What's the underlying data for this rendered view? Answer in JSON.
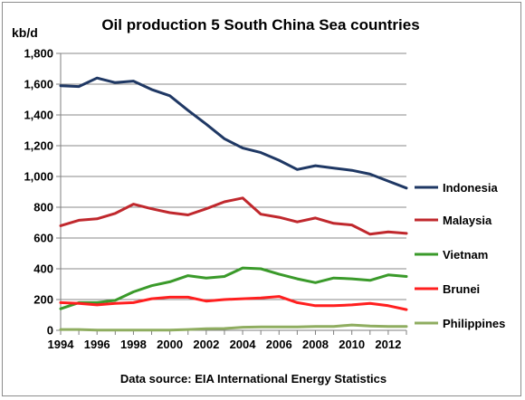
{
  "chart_data": {
    "type": "line",
    "title": "Oil production 5 South China Sea countries",
    "ylabel": "kb/d",
    "xlabel": "",
    "source": "Data source: EIA International Energy Statistics",
    "x": [
      1994,
      1995,
      1996,
      1997,
      1998,
      1999,
      2000,
      2001,
      2002,
      2003,
      2004,
      2005,
      2006,
      2007,
      2008,
      2009,
      2010,
      2011,
      2012,
      2013
    ],
    "xticks": [
      "1994",
      "1996",
      "1998",
      "2000",
      "2002",
      "2004",
      "2006",
      "2008",
      "2010",
      "2012"
    ],
    "yticks": [
      "0",
      "200",
      "400",
      "600",
      "800",
      "1,000",
      "1,200",
      "1,400",
      "1,600",
      "1,800"
    ],
    "ylim": [
      0,
      1800
    ],
    "xlim": [
      1994,
      2013
    ],
    "grid": "horizontal",
    "legend": "right",
    "series": [
      {
        "name": "Indonesia",
        "color": "#1f3864",
        "values": [
          1590,
          1585,
          1640,
          1610,
          1620,
          1565,
          1525,
          1430,
          1340,
          1245,
          1185,
          1155,
          1105,
          1045,
          1070,
          1055,
          1040,
          1015,
          970,
          925
        ]
      },
      {
        "name": "Malaysia",
        "color": "#c0282d",
        "values": [
          680,
          715,
          725,
          760,
          820,
          790,
          765,
          750,
          790,
          835,
          860,
          755,
          735,
          705,
          730,
          695,
          685,
          625,
          640,
          630
        ]
      },
      {
        "name": "Vietnam",
        "color": "#3a9a2a",
        "values": [
          140,
          180,
          180,
          195,
          250,
          290,
          315,
          355,
          340,
          350,
          405,
          400,
          365,
          335,
          310,
          340,
          335,
          325,
          360,
          350
        ]
      },
      {
        "name": "Brunei",
        "color": "#ff1f1f",
        "values": [
          180,
          175,
          165,
          175,
          180,
          205,
          215,
          215,
          190,
          200,
          205,
          210,
          220,
          180,
          160,
          160,
          165,
          175,
          160,
          135
        ]
      },
      {
        "name": "Philippines",
        "color": "#8fad60",
        "values": [
          5,
          5,
          2,
          2,
          2,
          2,
          2,
          5,
          10,
          12,
          20,
          22,
          22,
          22,
          25,
          25,
          35,
          28,
          25,
          25
        ]
      }
    ]
  }
}
